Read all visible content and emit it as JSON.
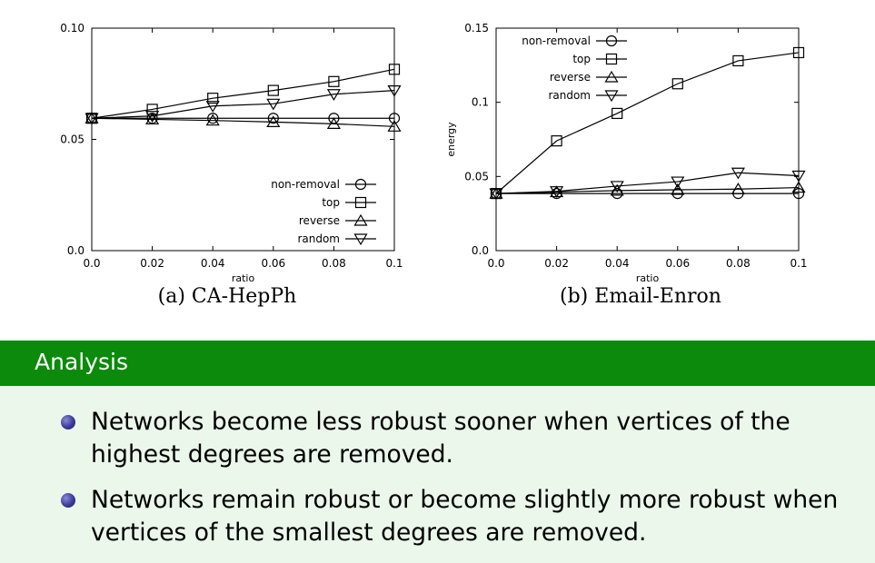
{
  "chart_data": [
    {
      "type": "line",
      "caption": "(a) CA-HepPh",
      "xlabel": "ratio",
      "ylabel": "",
      "xlim": [
        0.0,
        0.1
      ],
      "ylim": [
        0.0,
        0.1
      ],
      "x_ticks": [
        "0.0",
        "0.02",
        "0.04",
        "0.06",
        "0.08",
        "0.1"
      ],
      "y_ticks": [
        "0.0",
        "0.05",
        "0.10"
      ],
      "legend_position": "bottom-right",
      "grid": false,
      "x": [
        0.0,
        0.02,
        0.04,
        0.06,
        0.08,
        0.1
      ],
      "series": [
        {
          "name": "non-removal",
          "marker": "circle",
          "values": [
            0.0595,
            0.0595,
            0.0595,
            0.0595,
            0.0595,
            0.0595
          ]
        },
        {
          "name": "top",
          "marker": "square",
          "values": [
            0.0595,
            0.0635,
            0.0685,
            0.072,
            0.076,
            0.0815
          ]
        },
        {
          "name": "reverse",
          "marker": "triangle-up",
          "values": [
            0.0595,
            0.059,
            0.0585,
            0.0578,
            0.057,
            0.0558
          ]
        },
        {
          "name": "random",
          "marker": "triangle-down",
          "values": [
            0.0595,
            0.0605,
            0.065,
            0.066,
            0.0703,
            0.072
          ]
        }
      ]
    },
    {
      "type": "line",
      "caption": "(b) Email-Enron",
      "xlabel": "ratio",
      "ylabel": "energy",
      "xlim": [
        0.0,
        0.1
      ],
      "ylim": [
        0.0,
        0.15
      ],
      "x_ticks": [
        "0.0",
        "0.02",
        "0.04",
        "0.06",
        "0.08",
        "0.1"
      ],
      "y_ticks": [
        "0.0",
        "0.05",
        "0.1",
        "0.15"
      ],
      "legend_position": "top-left",
      "grid": false,
      "x": [
        0.0,
        0.02,
        0.04,
        0.06,
        0.08,
        0.1
      ],
      "series": [
        {
          "name": "non-removal",
          "marker": "circle",
          "values": [
            0.0385,
            0.0385,
            0.0385,
            0.0385,
            0.0385,
            0.0385
          ]
        },
        {
          "name": "top",
          "marker": "square",
          "values": [
            0.0385,
            0.074,
            0.0925,
            0.1125,
            0.128,
            0.1335
          ]
        },
        {
          "name": "reverse",
          "marker": "triangle-up",
          "values": [
            0.0385,
            0.0395,
            0.0405,
            0.041,
            0.0415,
            0.0425
          ]
        },
        {
          "name": "random",
          "marker": "triangle-down",
          "values": [
            0.0385,
            0.04,
            0.0435,
            0.0465,
            0.0525,
            0.0505
          ]
        }
      ]
    }
  ],
  "analysis": {
    "title": "Analysis",
    "bullets": [
      "Networks become less robust sooner when vertices of the highest degrees are removed.",
      "Networks remain robust or become slightly more robust when vertices of the smallest degrees are removed."
    ]
  }
}
